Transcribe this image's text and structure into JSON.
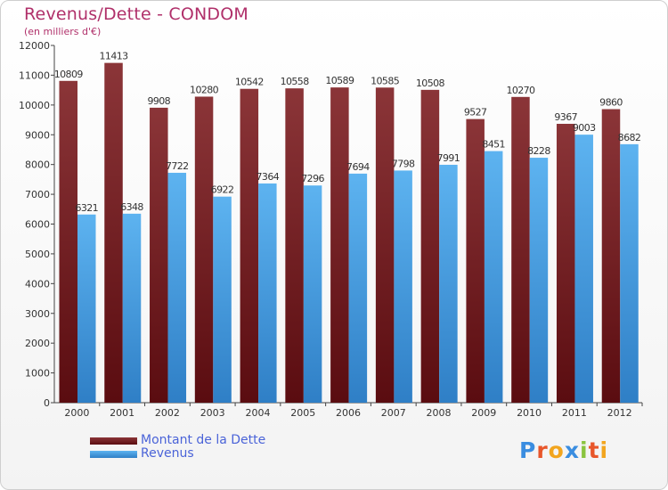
{
  "title": "Revenus/Dette - CONDOM",
  "subtitle": "(en milliers d'€)",
  "logo": [
    "P",
    "r",
    "o",
    "x",
    "i",
    "t",
    "i"
  ],
  "chart_data": {
    "type": "bar",
    "title": "Revenus/Dette - CONDOM",
    "ylabel": "(en milliers d'€)",
    "xlabel": "",
    "ylim": [
      0,
      12000
    ],
    "yticks": [
      0,
      1000,
      2000,
      3000,
      4000,
      5000,
      6000,
      7000,
      8000,
      9000,
      10000,
      11000,
      12000
    ],
    "categories": [
      "2000",
      "2001",
      "2002",
      "2003",
      "2004",
      "2005",
      "2006",
      "2007",
      "2008",
      "2009",
      "2010",
      "2011",
      "2012"
    ],
    "series": [
      {
        "name": "Montant de la Dette",
        "color": "#7a1f22",
        "values": [
          10809,
          11413,
          9908,
          10280,
          10542,
          10558,
          10589,
          10585,
          10508,
          9527,
          10270,
          9367,
          9860
        ]
      },
      {
        "name": "Revenus",
        "color": "#4fa6e8",
        "values": [
          6321,
          6348,
          7722,
          6922,
          7364,
          7296,
          7694,
          7798,
          7991,
          8451,
          8228,
          9003,
          8682
        ]
      }
    ],
    "grid": false,
    "legend": "bottom-left"
  },
  "colors": {
    "title": "#b0306a",
    "legend_text": "#4a63d8",
    "logo": [
      "#3a8de0",
      "#e8562a",
      "#f2a51e",
      "#3a8de0",
      "#8ac43f",
      "#e8562a",
      "#f2a51e"
    ]
  }
}
